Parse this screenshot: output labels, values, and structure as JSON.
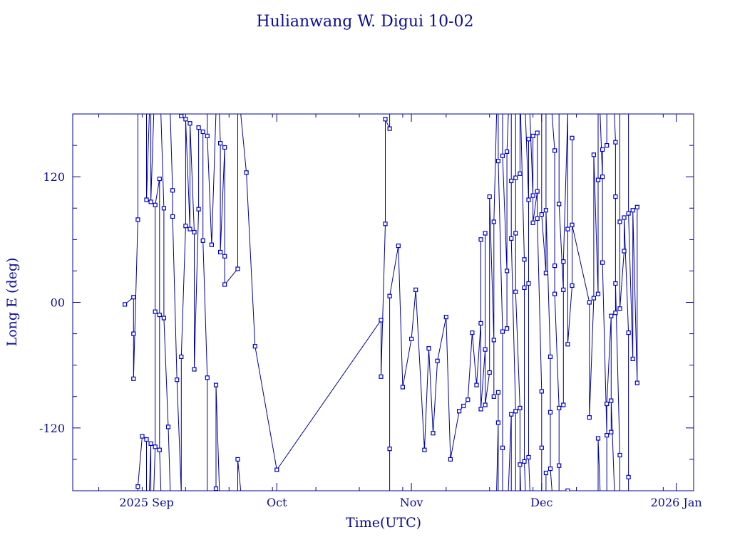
{
  "chart_data": {
    "type": "scatter",
    "title": "Hulianwang W. Digui 10-02",
    "xlabel": "Time(UTC)",
    "ylabel": "Long E (deg)",
    "x_axis_kind": "date",
    "xlim": [
      "2025-08-15",
      "2026-01-05"
    ],
    "ylim": [
      -180,
      180
    ],
    "x_ticks": [
      {
        "date": "2025-09-01",
        "label": "2025 Sep"
      },
      {
        "date": "2025-10-01",
        "label": "Oct"
      },
      {
        "date": "2025-11-01",
        "label": "Nov"
      },
      {
        "date": "2025-12-01",
        "label": "Dec"
      },
      {
        "date": "2026-01-01",
        "label": "2026 Jan"
      }
    ],
    "y_ticks": [
      {
        "value": 120,
        "label": "120"
      },
      {
        "value": 0,
        "label": "00"
      },
      {
        "value": -120,
        "label": "-120"
      }
    ],
    "grid": false,
    "legend": "none",
    "colors": {
      "line": "#0000a0",
      "marker": "#0000c8",
      "text": "#0a0a9a"
    },
    "series": [
      {
        "marker": "square",
        "points": [
          {
            "x": "2025-08-27",
            "y": -2
          },
          {
            "x": "2025-08-29",
            "y": 5
          },
          {
            "x": "2025-08-29",
            "y": -30
          },
          {
            "x": "2025-08-29",
            "y": -73
          },
          {
            "x": "2025-08-30",
            "y": 79
          },
          {
            "x": "2025-08-30",
            "y": -176
          },
          {
            "x": "2025-08-31",
            "y": -128
          },
          {
            "x": "2025-09-01",
            "y": -131
          },
          {
            "x": "2025-09-01",
            "y": 98
          },
          {
            "x": "2025-09-02",
            "y": -135
          },
          {
            "x": "2025-09-02",
            "y": 96
          },
          {
            "x": "2025-09-03",
            "y": -138
          },
          {
            "x": "2025-09-03",
            "y": -9
          },
          {
            "x": "2025-09-03",
            "y": 93
          },
          {
            "x": "2025-09-04",
            "y": 118
          },
          {
            "x": "2025-09-04",
            "y": -12
          },
          {
            "x": "2025-09-04",
            "y": -141
          },
          {
            "x": "2025-09-05",
            "y": 90
          },
          {
            "x": "2025-09-05",
            "y": -15
          },
          {
            "x": "2025-09-06",
            "y": -119
          },
          {
            "x": "2025-09-07",
            "y": 107
          },
          {
            "x": "2025-09-07",
            "y": 82
          },
          {
            "x": "2025-09-08",
            "y": -74
          },
          {
            "x": "2025-09-09",
            "y": 178
          },
          {
            "x": "2025-09-09",
            "y": -52
          },
          {
            "x": "2025-09-10",
            "y": 73
          },
          {
            "x": "2025-09-10",
            "y": 175
          },
          {
            "x": "2025-09-11",
            "y": 70
          },
          {
            "x": "2025-09-11",
            "y": 171
          },
          {
            "x": "2025-09-12",
            "y": 67
          },
          {
            "x": "2025-09-12",
            "y": -64
          },
          {
            "x": "2025-09-13",
            "y": 89
          },
          {
            "x": "2025-09-13",
            "y": 167
          },
          {
            "x": "2025-09-14",
            "y": 163
          },
          {
            "x": "2025-09-14",
            "y": 59
          },
          {
            "x": "2025-09-15",
            "y": -72
          },
          {
            "x": "2025-09-15",
            "y": 159
          },
          {
            "x": "2025-09-16",
            "y": 55
          },
          {
            "x": "2025-09-17",
            "y": -178
          },
          {
            "x": "2025-09-17",
            "y": -79
          },
          {
            "x": "2025-09-18",
            "y": 152
          },
          {
            "x": "2025-09-18",
            "y": 48
          },
          {
            "x": "2025-09-19",
            "y": 148
          },
          {
            "x": "2025-09-19",
            "y": 44
          },
          {
            "x": "2025-09-19",
            "y": 17
          },
          {
            "x": "2025-09-22",
            "y": 32
          },
          {
            "x": "2025-09-22",
            "y": -150
          },
          {
            "x": "2025-09-24",
            "y": 124
          },
          {
            "x": "2025-09-26",
            "y": -42
          },
          {
            "x": "2025-10-01",
            "y": -160
          },
          {
            "x": "2025-10-25",
            "y": -17
          },
          {
            "x": "2025-10-25",
            "y": -71
          },
          {
            "x": "2025-10-26",
            "y": 75
          },
          {
            "x": "2025-10-26",
            "y": 175
          },
          {
            "x": "2025-10-27",
            "y": 166
          },
          {
            "x": "2025-10-27",
            "y": -140
          },
          {
            "x": "2025-10-27",
            "y": 6
          },
          {
            "x": "2025-10-29",
            "y": 54
          },
          {
            "x": "2025-10-30",
            "y": -81
          },
          {
            "x": "2025-11-01",
            "y": -35
          },
          {
            "x": "2025-11-02",
            "y": 12
          },
          {
            "x": "2025-11-04",
            "y": -141
          },
          {
            "x": "2025-11-05",
            "y": -44
          },
          {
            "x": "2025-11-06",
            "y": -125
          },
          {
            "x": "2025-11-07",
            "y": -56
          },
          {
            "x": "2025-11-09",
            "y": -14
          },
          {
            "x": "2025-11-10",
            "y": -150
          },
          {
            "x": "2025-11-12",
            "y": -104
          },
          {
            "x": "2025-11-13",
            "y": -99
          },
          {
            "x": "2025-11-14",
            "y": -93
          },
          {
            "x": "2025-11-15",
            "y": -29
          },
          {
            "x": "2025-11-16",
            "y": -79
          },
          {
            "x": "2025-11-17",
            "y": -20
          },
          {
            "x": "2025-11-17",
            "y": 60
          },
          {
            "x": "2025-11-17",
            "y": -102
          },
          {
            "x": "2025-11-18",
            "y": -45
          },
          {
            "x": "2025-11-18",
            "y": 66
          },
          {
            "x": "2025-11-18",
            "y": -98
          },
          {
            "x": "2025-11-19",
            "y": -67
          },
          {
            "x": "2025-11-19",
            "y": 101
          },
          {
            "x": "2025-11-20",
            "y": -36
          },
          {
            "x": "2025-11-20",
            "y": -90
          },
          {
            "x": "2025-11-20",
            "y": 77
          },
          {
            "x": "2025-11-21",
            "y": -115
          },
          {
            "x": "2025-11-21",
            "y": -86
          },
          {
            "x": "2025-11-21",
            "y": 135
          },
          {
            "x": "2025-11-22",
            "y": -28
          },
          {
            "x": "2025-11-22",
            "y": -139
          },
          {
            "x": "2025-11-22",
            "y": 140
          },
          {
            "x": "2025-11-23",
            "y": 30
          },
          {
            "x": "2025-11-23",
            "y": -25
          },
          {
            "x": "2025-11-23",
            "y": 144
          },
          {
            "x": "2025-11-24",
            "y": -107
          },
          {
            "x": "2025-11-24",
            "y": 116
          },
          {
            "x": "2025-11-24",
            "y": 61
          },
          {
            "x": "2025-11-25",
            "y": -104
          },
          {
            "x": "2025-11-25",
            "y": 119
          },
          {
            "x": "2025-11-25",
            "y": 66
          },
          {
            "x": "2025-11-25",
            "y": 10
          },
          {
            "x": "2025-11-26",
            "y": -101
          },
          {
            "x": "2025-11-26",
            "y": 123
          },
          {
            "x": "2025-11-26",
            "y": -155
          },
          {
            "x": "2025-11-27",
            "y": 41
          },
          {
            "x": "2025-11-27",
            "y": 14
          },
          {
            "x": "2025-11-27",
            "y": -152
          },
          {
            "x": "2025-11-28",
            "y": 98
          },
          {
            "x": "2025-11-28",
            "y": 156
          },
          {
            "x": "2025-11-28",
            "y": 18
          },
          {
            "x": "2025-11-28",
            "y": -148
          },
          {
            "x": "2025-11-29",
            "y": 102
          },
          {
            "x": "2025-11-29",
            "y": 159
          },
          {
            "x": "2025-11-29",
            "y": 76
          },
          {
            "x": "2025-11-30",
            "y": 106
          },
          {
            "x": "2025-11-30",
            "y": 162
          },
          {
            "x": "2025-11-30",
            "y": 80
          },
          {
            "x": "2025-12-01",
            "y": -85
          },
          {
            "x": "2025-12-01",
            "y": -139
          },
          {
            "x": "2025-12-01",
            "y": 84
          },
          {
            "x": "2025-12-02",
            "y": 28
          },
          {
            "x": "2025-12-02",
            "y": -163
          },
          {
            "x": "2025-12-02",
            "y": 88
          },
          {
            "x": "2025-12-03",
            "y": -52
          },
          {
            "x": "2025-12-03",
            "y": -105
          },
          {
            "x": "2025-12-03",
            "y": -159
          },
          {
            "x": "2025-12-04",
            "y": 145
          },
          {
            "x": "2025-12-04",
            "y": 35
          },
          {
            "x": "2025-12-04",
            "y": 8
          },
          {
            "x": "2025-12-05",
            "y": -101
          },
          {
            "x": "2025-12-05",
            "y": -156
          },
          {
            "x": "2025-12-05",
            "y": 94
          },
          {
            "x": "2025-12-06",
            "y": 12
          },
          {
            "x": "2025-12-06",
            "y": -98
          },
          {
            "x": "2025-12-06",
            "y": 39
          },
          {
            "x": "2025-12-07",
            "y": -180
          },
          {
            "x": "2025-12-07",
            "y": 70
          },
          {
            "x": "2025-12-07",
            "y": -40
          },
          {
            "x": "2025-12-08",
            "y": 16
          },
          {
            "x": "2025-12-08",
            "y": 157
          },
          {
            "x": "2025-12-08",
            "y": 74
          },
          {
            "x": "2025-12-12",
            "y": 0
          },
          {
            "x": "2025-12-12",
            "y": -110
          },
          {
            "x": "2025-12-13",
            "y": 4
          },
          {
            "x": "2025-12-13",
            "y": 141
          },
          {
            "x": "2025-12-14",
            "y": 8
          },
          {
            "x": "2025-12-14",
            "y": 117
          },
          {
            "x": "2025-12-14",
            "y": -130
          },
          {
            "x": "2025-12-15",
            "y": 120
          },
          {
            "x": "2025-12-15",
            "y": 146
          },
          {
            "x": "2025-12-15",
            "y": 38
          },
          {
            "x": "2025-12-16",
            "y": -127
          },
          {
            "x": "2025-12-16",
            "y": 150
          },
          {
            "x": "2025-12-16",
            "y": -97
          },
          {
            "x": "2025-12-17",
            "y": -13
          },
          {
            "x": "2025-12-17",
            "y": -124
          },
          {
            "x": "2025-12-17",
            "y": -94
          },
          {
            "x": "2025-12-18",
            "y": 153
          },
          {
            "x": "2025-12-18",
            "y": -10
          },
          {
            "x": "2025-12-18",
            "y": 101
          },
          {
            "x": "2025-12-18",
            "y": 18
          },
          {
            "x": "2025-12-19",
            "y": -146
          },
          {
            "x": "2025-12-19",
            "y": 77
          },
          {
            "x": "2025-12-19",
            "y": -6
          },
          {
            "x": "2025-12-20",
            "y": 49
          },
          {
            "x": "2025-12-20",
            "y": 81
          },
          {
            "x": "2025-12-21",
            "y": -29
          },
          {
            "x": "2025-12-21",
            "y": -167
          },
          {
            "x": "2025-12-21",
            "y": 85
          },
          {
            "x": "2025-12-22",
            "y": -54
          },
          {
            "x": "2025-12-22",
            "y": 88
          },
          {
            "x": "2025-12-23",
            "y": -77
          },
          {
            "x": "2025-12-23",
            "y": 91
          }
        ]
      }
    ]
  }
}
